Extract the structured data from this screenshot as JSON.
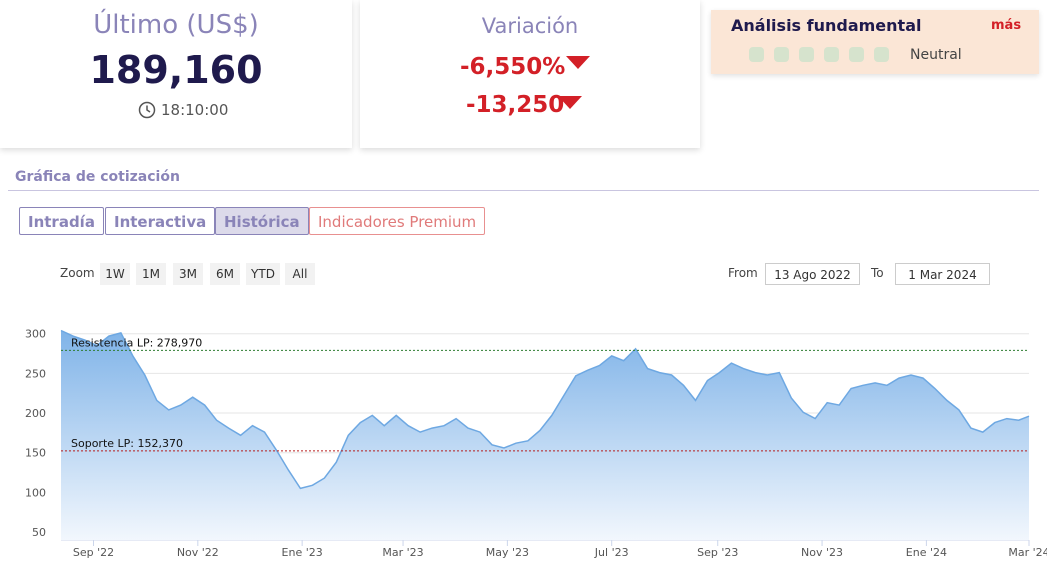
{
  "last": {
    "title": "Último (US$)",
    "value": "189,160",
    "time": "18:10:00"
  },
  "variation": {
    "title": "Variación",
    "percent": "-6,550%",
    "absolute": "-13,250"
  },
  "fundamental": {
    "title": "Análisis fundamental",
    "more": "más",
    "rating": "Neutral"
  },
  "section_title": "Gráfica de cotización",
  "tabs": [
    "Intradía",
    "Interactiva",
    "Histórica",
    "Indicadores Premium"
  ],
  "zoom": {
    "label": "Zoom",
    "buttons": [
      "1W",
      "1M",
      "3M",
      "6M",
      "YTD",
      "All"
    ]
  },
  "range": {
    "from_label": "From",
    "from": "13 Ago 2022",
    "to_label": "To",
    "to": "1 Mar 2024"
  },
  "chart_data": {
    "type": "area",
    "color": "#6ea8e2",
    "x": [
      "2022-08-13",
      "2022-08-20",
      "2022-08-27",
      "2022-09-03",
      "2022-09-10",
      "2022-09-17",
      "2022-09-24",
      "2022-10-01",
      "2022-10-08",
      "2022-10-15",
      "2022-10-22",
      "2022-10-29",
      "2022-11-05",
      "2022-11-12",
      "2022-11-19",
      "2022-11-26",
      "2022-12-03",
      "2022-12-10",
      "2022-12-17",
      "2022-12-24",
      "2022-12-31",
      "2023-01-07",
      "2023-01-14",
      "2023-01-21",
      "2023-01-28",
      "2023-02-04",
      "2023-02-11",
      "2023-02-18",
      "2023-02-25",
      "2023-03-04",
      "2023-03-11",
      "2023-03-18",
      "2023-03-25",
      "2023-04-01",
      "2023-04-08",
      "2023-04-15",
      "2023-04-22",
      "2023-04-29",
      "2023-05-06",
      "2023-05-13",
      "2023-05-20",
      "2023-05-27",
      "2023-06-03",
      "2023-06-10",
      "2023-06-17",
      "2023-06-24",
      "2023-07-01",
      "2023-07-08",
      "2023-07-15",
      "2023-07-22",
      "2023-07-29",
      "2023-08-05",
      "2023-08-12",
      "2023-08-19",
      "2023-08-26",
      "2023-09-02",
      "2023-09-09",
      "2023-09-16",
      "2023-09-23",
      "2023-09-30",
      "2023-10-07",
      "2023-10-14",
      "2023-10-21",
      "2023-10-28",
      "2023-11-04",
      "2023-11-11",
      "2023-11-18",
      "2023-11-25",
      "2023-12-02",
      "2023-12-09",
      "2023-12-16",
      "2023-12-23",
      "2023-12-30",
      "2024-01-06",
      "2024-01-13",
      "2024-01-20",
      "2024-01-27",
      "2024-02-03",
      "2024-02-10",
      "2024-02-17",
      "2024-02-24",
      "2024-03-01"
    ],
    "values": [
      304,
      297,
      292,
      285,
      297,
      301,
      272,
      248,
      216,
      204,
      210,
      220,
      210,
      191,
      181,
      172,
      184,
      176,
      153,
      128,
      105,
      109,
      118,
      138,
      172,
      188,
      197,
      184,
      197,
      184,
      176,
      181,
      184,
      193,
      181,
      176,
      160,
      156,
      162,
      165,
      178,
      197,
      222,
      247,
      254,
      260,
      272,
      266,
      281,
      256,
      251,
      248,
      235,
      216,
      241,
      251,
      263,
      256,
      251,
      248,
      251,
      219,
      201,
      193,
      213,
      210,
      231,
      235,
      238,
      235,
      244,
      248,
      244,
      231,
      216,
      204,
      181,
      176,
      188,
      193,
      191,
      196
    ],
    "xlim": [
      "2022-08-13",
      "2024-03-01"
    ],
    "xticks": [
      {
        "value": "2022-09-01",
        "label": "Sep '22"
      },
      {
        "value": "2022-11-01",
        "label": "Nov '22"
      },
      {
        "value": "2023-01-01",
        "label": "Ene '23"
      },
      {
        "value": "2023-03-01",
        "label": "Mar '23"
      },
      {
        "value": "2023-05-01",
        "label": "May '23"
      },
      {
        "value": "2023-07-01",
        "label": "Jul '23"
      },
      {
        "value": "2023-09-01",
        "label": "Sep '23"
      },
      {
        "value": "2023-11-01",
        "label": "Nov '23"
      },
      {
        "value": "2024-01-01",
        "label": "Ene '24"
      },
      {
        "value": "2024-03-01",
        "label": "Mar '24"
      }
    ],
    "ylim": [
      40,
      345
    ],
    "yticks": [
      50,
      100,
      150,
      200,
      250,
      300
    ],
    "grid": true,
    "reference_lines": [
      {
        "value": 278.97,
        "label": "Resistencia LP: 278,970",
        "color": "#2e7d32"
      },
      {
        "value": 152.37,
        "label": "Soporte LP: 152,370",
        "color": "#b71c1c"
      }
    ]
  }
}
